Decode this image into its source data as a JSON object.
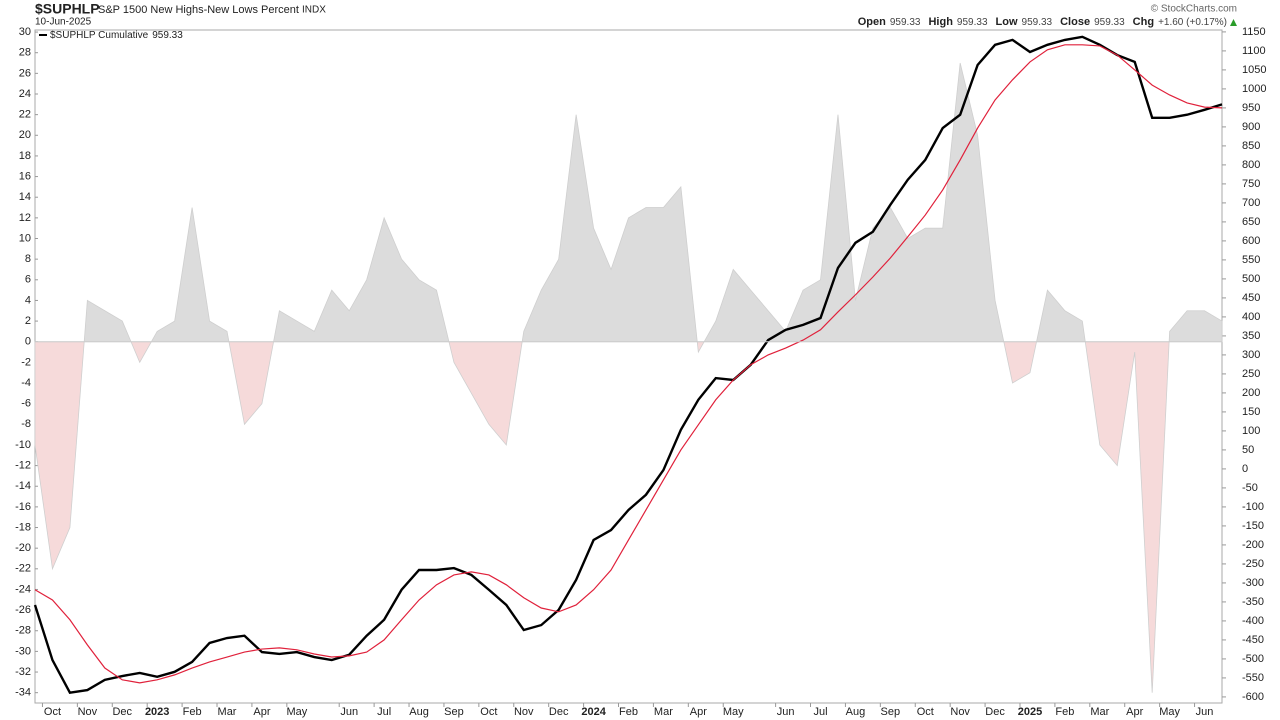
{
  "header": {
    "symbol": "$SUPHLP",
    "name": "S&P 1500 New Highs-New Lows Percent",
    "exchange": "INDX",
    "date": "10-Jun-2025",
    "copyright": "© StockCharts.com",
    "quote": [
      {
        "label": "Open",
        "value": "959.33"
      },
      {
        "label": "High",
        "value": "959.33"
      },
      {
        "label": "Low",
        "value": "959.33"
      },
      {
        "label": "Close",
        "value": "959.33"
      },
      {
        "label": "Chg",
        "value": "+1.60 (+0.17%)"
      }
    ]
  },
  "chart_data": {
    "type": "line",
    "categories": [
      null,
      "Oct",
      null,
      "Nov",
      null,
      "Dec",
      null,
      "2023",
      null,
      "Feb",
      null,
      "Mar",
      null,
      "Apr",
      null,
      "May",
      null,
      null,
      "Jun",
      null,
      "Jul",
      null,
      "Aug",
      null,
      "Sep",
      null,
      "Oct",
      null,
      "Nov",
      null,
      "Dec",
      null,
      "2024",
      null,
      "Feb",
      null,
      "Mar",
      null,
      "Apr",
      null,
      "May",
      null,
      null,
      "Jun",
      null,
      "Jul",
      null,
      "Aug",
      null,
      "Sep",
      null,
      "Oct",
      null,
      "Nov",
      null,
      "Dec",
      null,
      "2025",
      null,
      "Feb",
      null,
      "Mar",
      null,
      "Apr",
      null,
      "May",
      null,
      "Jun",
      null
    ],
    "series": [
      {
        "type": "area",
        "color": "#dcdcdc",
        "negative_color": "#f6dada",
        "values": [
          -10,
          -22,
          -18,
          4,
          3,
          2,
          -2,
          1,
          2,
          13,
          2,
          1,
          -8,
          -6,
          3,
          2,
          1,
          5,
          3,
          6,
          12,
          8,
          6,
          5,
          -2,
          -5,
          -8,
          -10,
          1,
          5,
          8,
          22,
          11,
          7,
          12,
          13,
          13,
          15,
          -1,
          2,
          7,
          5,
          3,
          1,
          5,
          6,
          22,
          4,
          11,
          13,
          10,
          11,
          11,
          27,
          20,
          4,
          -4,
          -3,
          5,
          3,
          2,
          -10,
          -12,
          -1,
          -34,
          1,
          3,
          3,
          2
        ]
      },
      {
        "type": "line",
        "axis": "y2",
        "name": "$SUPHLP Cumulative",
        "legend_value": "959.33",
        "color": "#000000",
        "values": [
          -358,
          -503,
          -589,
          -582,
          -555,
          -545,
          -537,
          -547,
          -534,
          -508,
          -458,
          -445,
          -439,
          -482,
          -487,
          -482,
          -495,
          -503,
          -489,
          -439,
          -397,
          -318,
          -266,
          -266,
          -261,
          -279,
          -318,
          -358,
          -424,
          -411,
          -371,
          -292,
          -187,
          -161,
          -108,
          -68,
          -3,
          103,
          182,
          239,
          234,
          274,
          339,
          366,
          379,
          397,
          529,
          595,
          624,
          695,
          761,
          813,
          897,
          932,
          1063,
          1116,
          1129,
          1097,
          1116,
          1129,
          1137,
          1116,
          1089,
          1071,
          924,
          924,
          932,
          945,
          959.33
        ]
      },
      {
        "type": "line",
        "axis": "y2",
        "color": "#e0213b",
        "values": [
          -318,
          -345,
          -397,
          -463,
          -524,
          -555,
          -563,
          -555,
          -542,
          -524,
          -508,
          -495,
          -482,
          -474,
          -471,
          -476,
          -487,
          -495,
          -492,
          -482,
          -450,
          -397,
          -345,
          -305,
          -279,
          -271,
          -279,
          -305,
          -339,
          -366,
          -376,
          -358,
          -318,
          -266,
          -187,
          -108,
          -29,
          50,
          116,
          182,
          234,
          274,
          300,
          318,
          339,
          366,
          413,
          458,
          505,
          555,
          611,
          668,
          734,
          813,
          897,
          971,
          1024,
          1071,
          1103,
          1116,
          1116,
          1113,
          1089,
          1050,
          1010,
          984,
          963,
          952,
          950
        ]
      }
    ],
    "ylim": [
      -35,
      30.2
    ],
    "yticks": [
      30,
      28,
      26,
      24,
      22,
      20,
      18,
      16,
      14,
      12,
      10,
      8,
      6,
      4,
      2,
      0,
      -2,
      -4,
      -6,
      -8,
      -10,
      -12,
      -14,
      -16,
      -18,
      -20,
      -22,
      -24,
      -26,
      -28,
      -30,
      -32,
      -34
    ],
    "y2lim": [
      -616,
      1155
    ],
    "y2ticks": [
      1150,
      1100,
      1050,
      1000,
      950,
      900,
      850,
      800,
      750,
      700,
      650,
      600,
      550,
      500,
      450,
      400,
      350,
      300,
      250,
      200,
      150,
      100,
      50,
      0,
      -50,
      -100,
      -150,
      -200,
      -250,
      -300,
      -350,
      -400,
      -450,
      -500,
      -550,
      -600
    ],
    "grid": false
  }
}
